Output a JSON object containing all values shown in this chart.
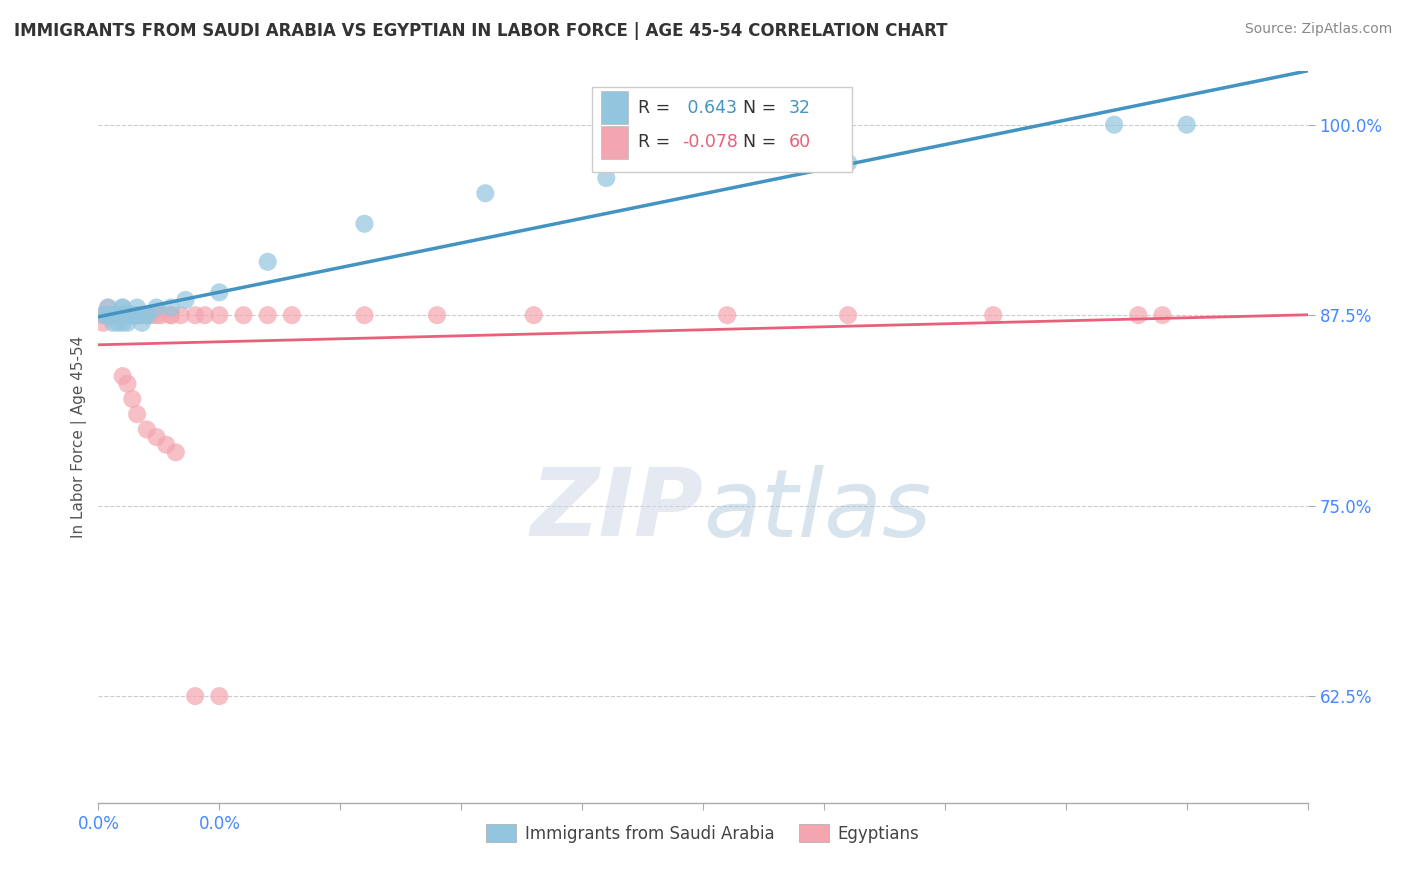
{
  "title": "IMMIGRANTS FROM SAUDI ARABIA VS EGYPTIAN IN LABOR FORCE | AGE 45-54 CORRELATION CHART",
  "source": "Source: ZipAtlas.com",
  "ylabel": "In Labor Force | Age 45-54",
  "xlim": [
    0.0,
    0.25
  ],
  "ylim": [
    0.555,
    1.035
  ],
  "xticks": [
    0.0,
    0.025,
    0.05,
    0.075,
    0.1,
    0.125,
    0.15,
    0.175,
    0.2,
    0.225,
    0.25
  ],
  "xticklabels_show": {
    "0.0": "0.0%"
  },
  "yticks": [
    0.625,
    0.75,
    0.875,
    1.0
  ],
  "yticklabels": [
    "62.5%",
    "75.0%",
    "87.5%",
    "100.0%"
  ],
  "legend_r_saudi": " 0.643",
  "legend_n_saudi": "32",
  "legend_r_egypt": "-0.078",
  "legend_n_egypt": "60",
  "color_saudi": "#92c5de",
  "color_egypt": "#f4a6b0",
  "line_color_saudi": "#4393c3",
  "line_color_egypt": "#e8607a",
  "background_color": "#ffffff",
  "watermark_zip": "ZIP",
  "watermark_atlas": "atlas",
  "saudi_x": [
    0.001,
    0.002,
    0.002,
    0.003,
    0.003,
    0.004,
    0.004,
    0.005,
    0.005,
    0.005,
    0.005,
    0.006,
    0.006,
    0.006,
    0.007,
    0.007,
    0.008,
    0.008,
    0.009,
    0.01,
    0.01,
    0.012,
    0.015,
    0.018,
    0.025,
    0.035,
    0.055,
    0.08,
    0.105,
    0.155,
    0.21,
    0.225
  ],
  "saudi_y": [
    0.875,
    0.875,
    0.88,
    0.875,
    0.87,
    0.87,
    0.875,
    0.88,
    0.875,
    0.87,
    0.88,
    0.875,
    0.875,
    0.87,
    0.875,
    0.875,
    0.88,
    0.875,
    0.87,
    0.875,
    0.875,
    0.88,
    0.88,
    0.885,
    0.89,
    0.91,
    0.935,
    0.955,
    0.965,
    0.975,
    1.0,
    1.0
  ],
  "egypt_x": [
    0.001,
    0.001,
    0.002,
    0.002,
    0.003,
    0.003,
    0.003,
    0.003,
    0.004,
    0.004,
    0.004,
    0.005,
    0.005,
    0.005,
    0.005,
    0.005,
    0.006,
    0.006,
    0.006,
    0.007,
    0.007,
    0.007,
    0.008,
    0.008,
    0.008,
    0.009,
    0.009,
    0.01,
    0.01,
    0.01,
    0.011,
    0.012,
    0.013,
    0.015,
    0.015,
    0.017,
    0.02,
    0.022,
    0.025,
    0.03,
    0.035,
    0.04,
    0.055,
    0.07,
    0.09,
    0.13,
    0.155,
    0.185,
    0.215,
    0.22,
    0.005,
    0.006,
    0.007,
    0.008,
    0.01,
    0.012,
    0.014,
    0.016,
    0.02,
    0.025
  ],
  "egypt_y": [
    0.875,
    0.87,
    0.88,
    0.875,
    0.875,
    0.875,
    0.875,
    0.875,
    0.875,
    0.875,
    0.875,
    0.875,
    0.875,
    0.875,
    0.875,
    0.875,
    0.875,
    0.875,
    0.875,
    0.875,
    0.875,
    0.875,
    0.875,
    0.875,
    0.875,
    0.875,
    0.875,
    0.875,
    0.875,
    0.875,
    0.875,
    0.875,
    0.875,
    0.875,
    0.875,
    0.875,
    0.875,
    0.875,
    0.875,
    0.875,
    0.875,
    0.875,
    0.875,
    0.875,
    0.875,
    0.875,
    0.875,
    0.875,
    0.875,
    0.875,
    0.835,
    0.83,
    0.82,
    0.81,
    0.8,
    0.795,
    0.79,
    0.785,
    0.625,
    0.625
  ]
}
